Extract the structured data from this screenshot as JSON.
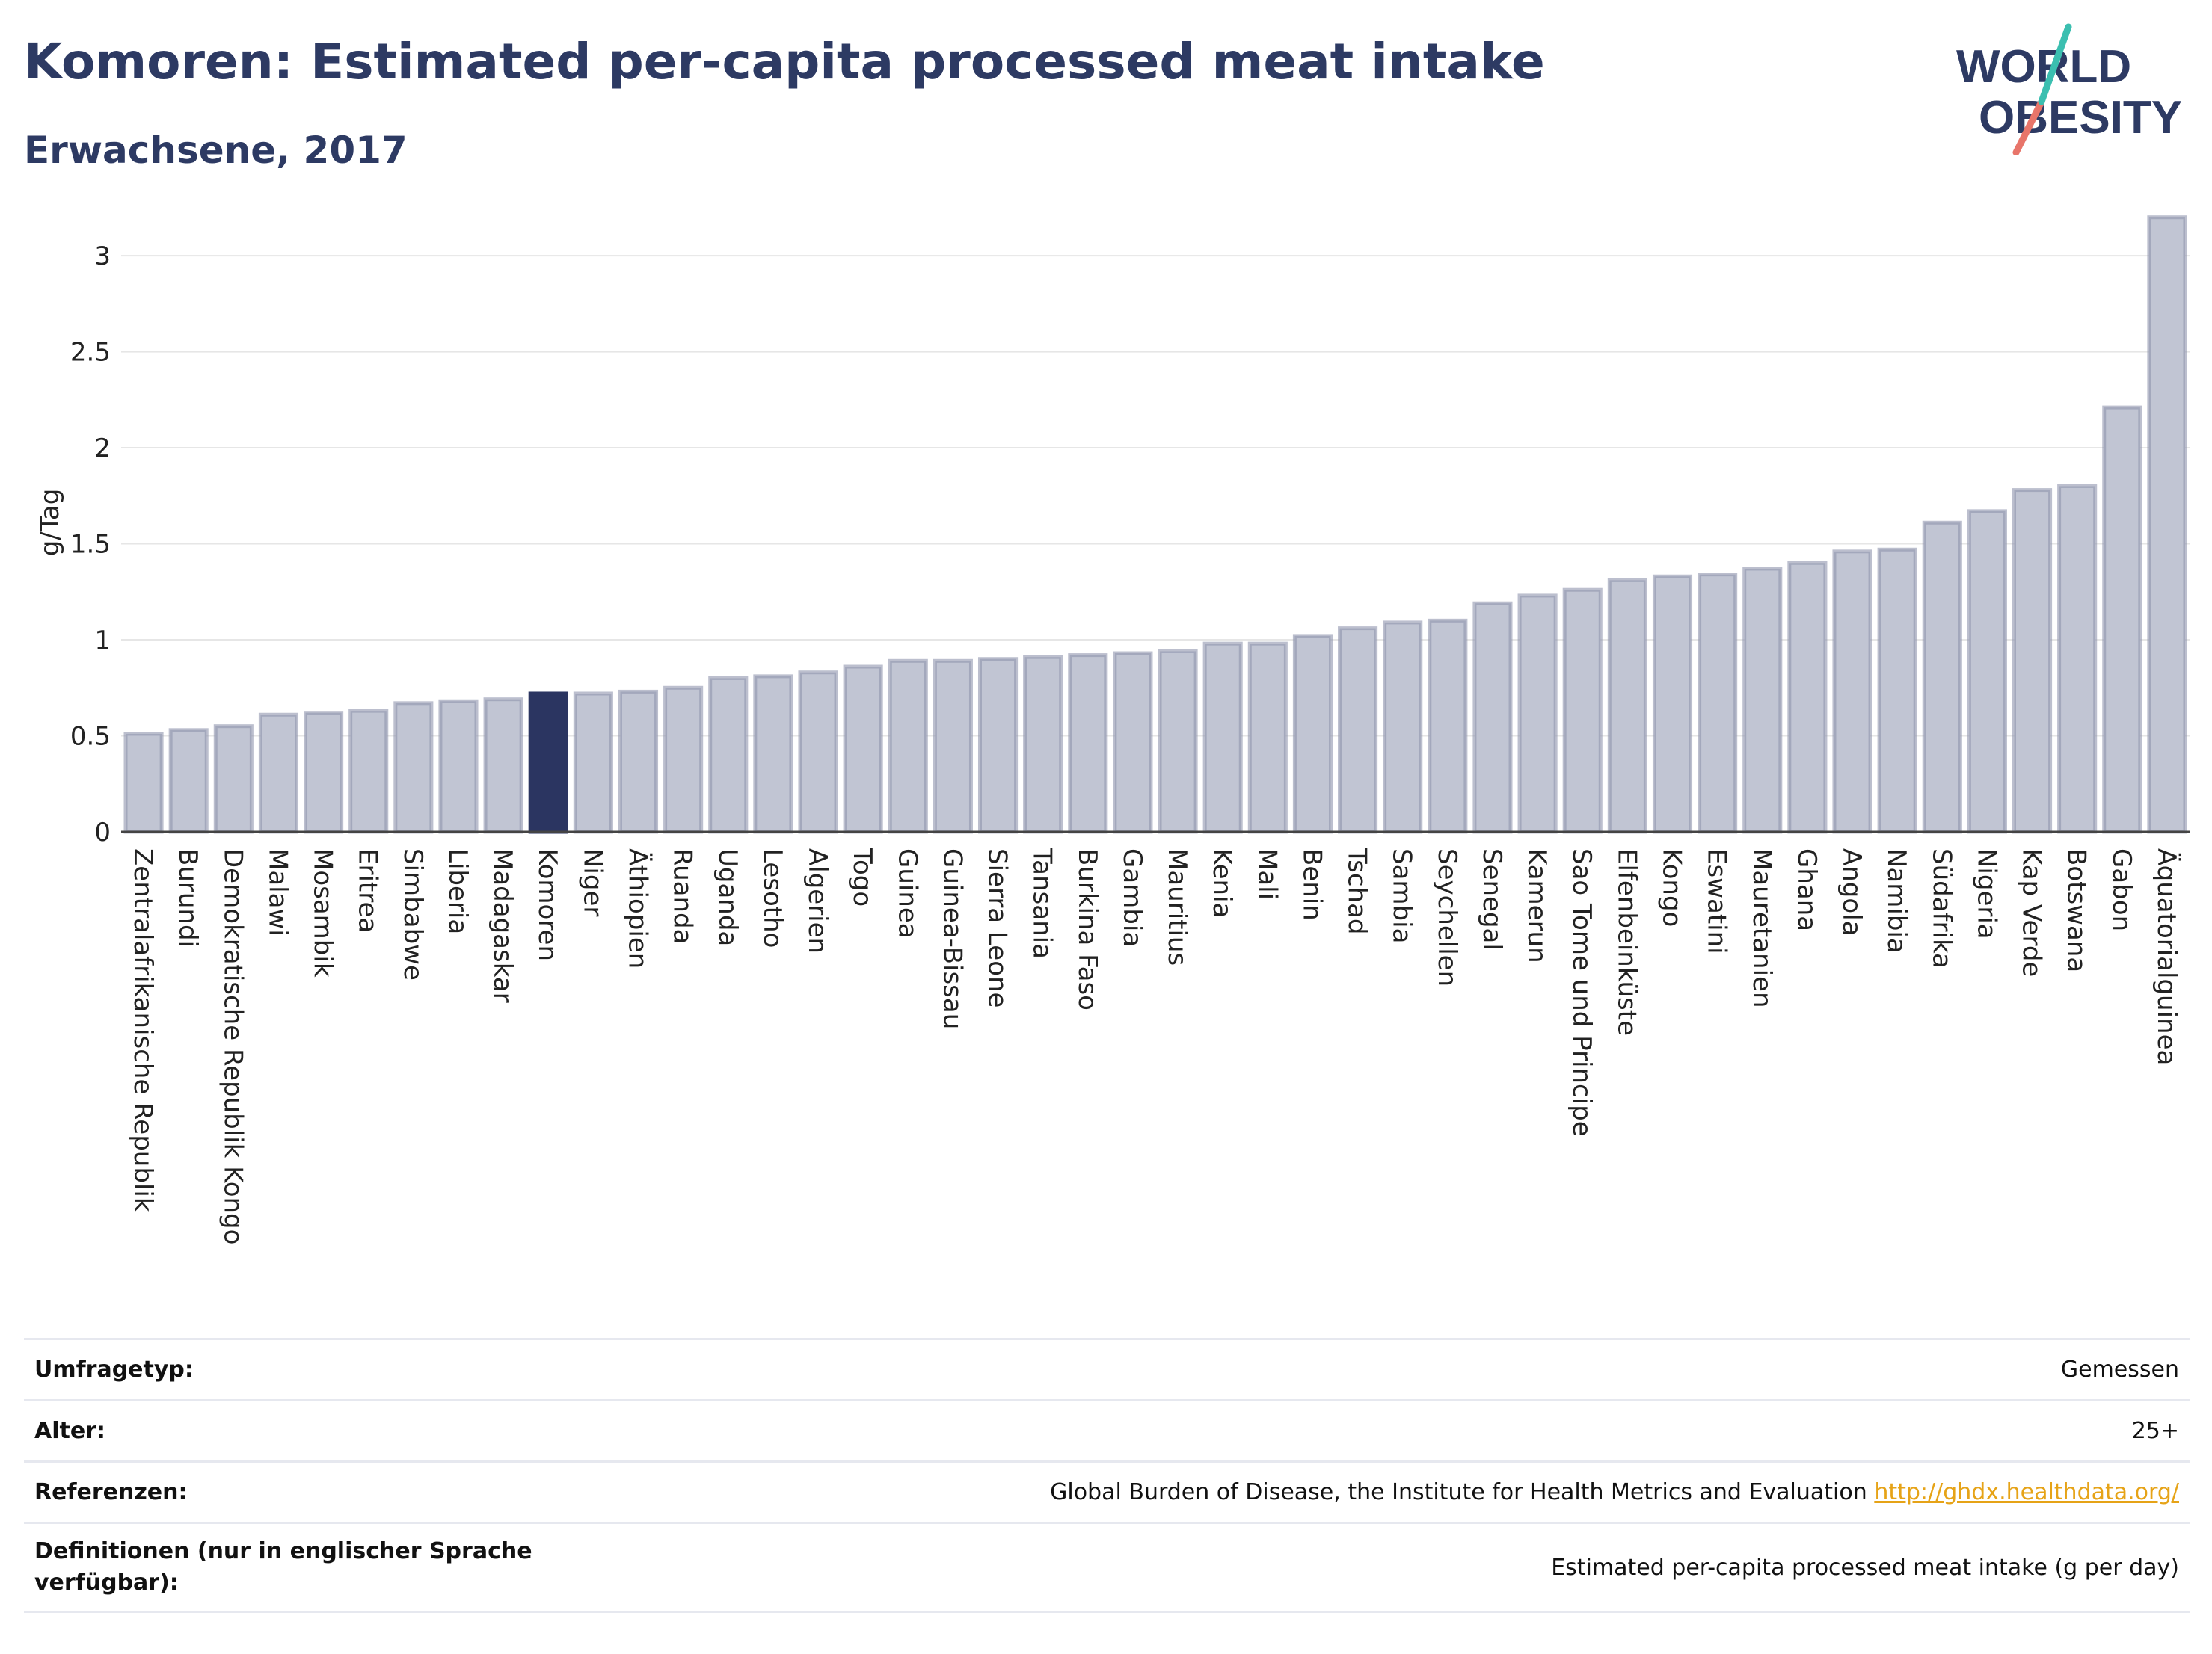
{
  "header": {
    "title": "Komoren: Estimated per-capita processed meat intake",
    "subtitle": "Erwachsene, 2017"
  },
  "logo": {
    "line1": "WORLD",
    "line2": "OBESITY",
    "accent_colors": [
      "#3bbfb0",
      "#e8756a"
    ]
  },
  "colors": {
    "highlight": "#2b3561",
    "bar": "#c1c5d3",
    "bar_stroke": "#8f95ad",
    "grid": "#e6e6e6",
    "text_dark": "#2d3a63"
  },
  "chart_data": {
    "type": "bar",
    "ylabel": "g/Tag",
    "ylim": [
      0,
      3.3
    ],
    "yticks": [
      {
        "v": 0,
        "label": "0"
      },
      {
        "v": 0.5,
        "label": "0.5"
      },
      {
        "v": 1,
        "label": "1"
      },
      {
        "v": 1.5,
        "label": "1.5"
      },
      {
        "v": 2,
        "label": "2"
      },
      {
        "v": 2.5,
        "label": "2.5"
      },
      {
        "v": 3,
        "label": "3"
      }
    ],
    "highlight": "Komoren",
    "grid": true,
    "categories": [
      "Zentralafrikanische Republik",
      "Burundi",
      "Demokratische Republik Kongo",
      "Malawi",
      "Mosambik",
      "Eritrea",
      "Simbabwe",
      "Liberia",
      "Madagaskar",
      "Komoren",
      "Niger",
      "Äthiopien",
      "Ruanda",
      "Uganda",
      "Lesotho",
      "Algerien",
      "Togo",
      "Guinea",
      "Guinea-Bissau",
      "Sierra Leone",
      "Tansania",
      "Burkina Faso",
      "Gambia",
      "Mauritius",
      "Kenia",
      "Mali",
      "Benin",
      "Tschad",
      "Sambia",
      "Seychellen",
      "Senegal",
      "Kamerun",
      "Sao Tome und Principe",
      "Elfenbeinküste",
      "Kongo",
      "Eswatini",
      "Mauretanien",
      "Ghana",
      "Angola",
      "Namibia",
      "Südafrika",
      "Nigeria",
      "Kap Verde",
      "Botswana",
      "Gabon",
      "Äquatorialguinea"
    ],
    "values": [
      0.51,
      0.53,
      0.55,
      0.61,
      0.62,
      0.63,
      0.67,
      0.68,
      0.69,
      0.72,
      0.72,
      0.73,
      0.75,
      0.8,
      0.81,
      0.83,
      0.86,
      0.89,
      0.89,
      0.9,
      0.91,
      0.92,
      0.93,
      0.94,
      0.98,
      0.98,
      1.02,
      1.06,
      1.09,
      1.1,
      1.19,
      1.23,
      1.26,
      1.31,
      1.33,
      1.34,
      1.37,
      1.4,
      1.46,
      1.47,
      1.61,
      1.67,
      1.78,
      1.8,
      2.21,
      3.2
    ]
  },
  "meta": [
    {
      "label": "Umfragetyp:",
      "value": "Gemessen"
    },
    {
      "label": "Alter:",
      "value": "25+"
    },
    {
      "label": "Referenzen:",
      "value": "Global Burden of Disease, the Institute for Health Metrics and Evaluation",
      "link": "http://ghdx.healthdata.org/"
    },
    {
      "label": "Definitionen (nur in englischer Sprache verfügbar):",
      "value": "Estimated per-capita processed meat intake (g per day)"
    }
  ]
}
